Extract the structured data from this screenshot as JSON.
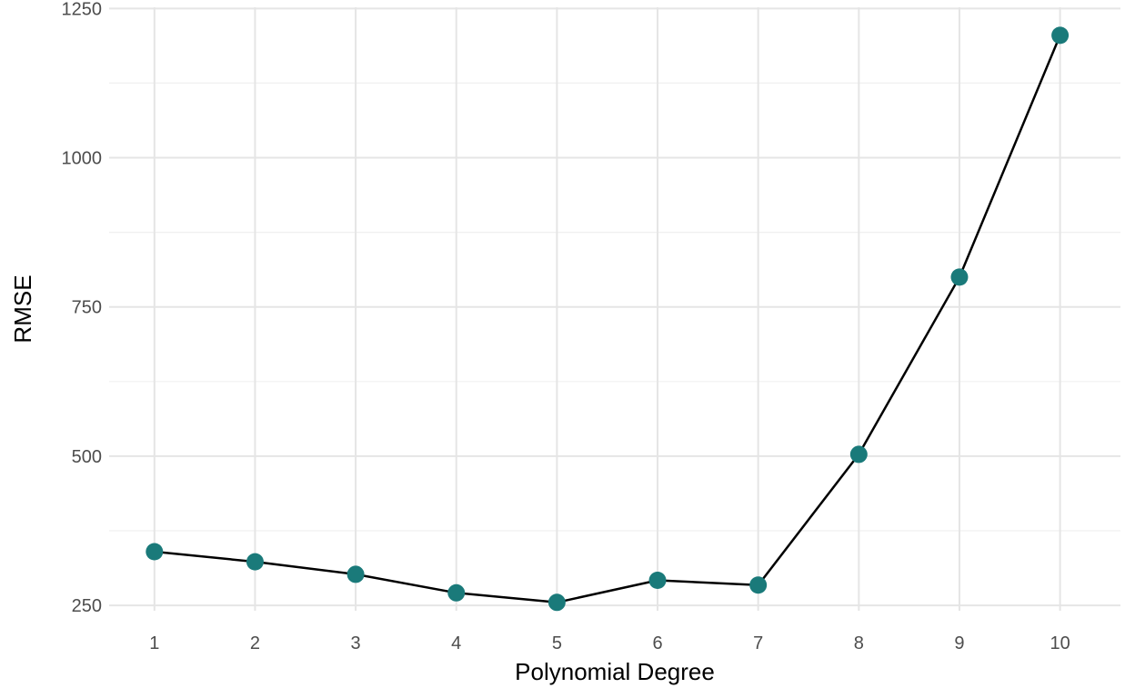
{
  "chart_data": {
    "type": "line",
    "xlabel": "Polynomial Degree",
    "ylabel": "RMSE",
    "x": [
      1,
      2,
      3,
      4,
      5,
      6,
      7,
      8,
      9,
      10
    ],
    "x_ticks": [
      "1",
      "2",
      "3",
      "4",
      "5",
      "6",
      "7",
      "8",
      "9",
      "10"
    ],
    "y_ticks": [
      "250",
      "500",
      "750",
      "1000",
      "1250"
    ],
    "xlim": [
      0.55,
      10.6
    ],
    "ylim": [
      241,
      1252
    ],
    "series": [
      {
        "values": [
          340,
          323,
          302,
          271,
          255,
          292,
          284,
          503,
          800,
          1205
        ],
        "line_color": "#000000",
        "marker_color": "#1a7a7a"
      }
    ],
    "markers": true,
    "grid": true,
    "legend": "none"
  }
}
